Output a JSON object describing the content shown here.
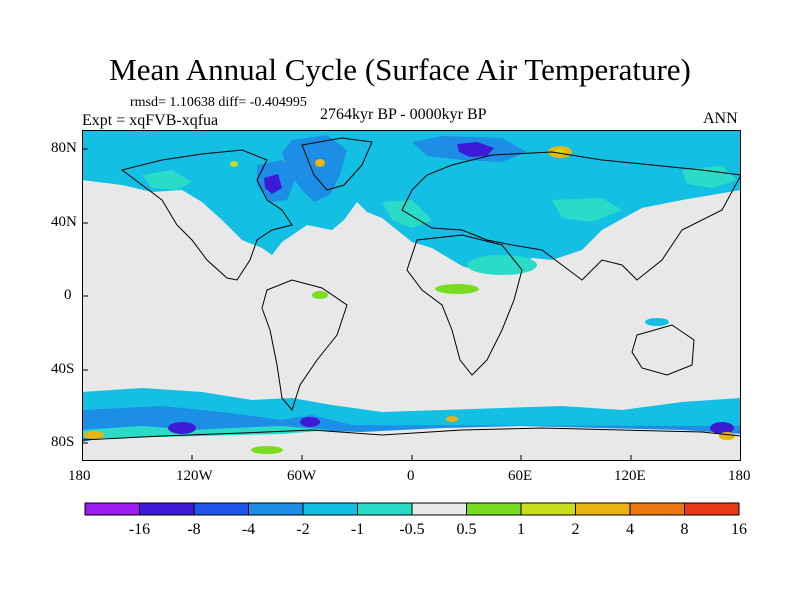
{
  "title": "Mean Annual Cycle (Surface Air Temperature)",
  "stats": "rmsd= 1.10638 diff= -0.404995",
  "experiment": "Expt = xqFVB-xqfua",
  "period": "2764kyr BP - 0000kyr BP",
  "season": "ANN",
  "axes": {
    "lat_labels": [
      "80N",
      "40N",
      "0",
      "40S",
      "80S"
    ],
    "lon_labels": [
      "180",
      "120W",
      "60W",
      "0",
      "60E",
      "120E",
      "180"
    ]
  },
  "legend": {
    "labels": [
      "-16",
      "-8",
      "-4",
      "-2",
      "-1",
      "-0.5",
      "0.5",
      "1",
      "2",
      "4",
      "8",
      "16"
    ],
    "colors": [
      "#9a1cf0",
      "#3c1ad6",
      "#1f55e8",
      "#1d8ee6",
      "#14bfe4",
      "#2adcc8",
      "#e8e8e8",
      "#78dc20",
      "#c8dc1c",
      "#e8b414",
      "#e8780f",
      "#e83a14"
    ]
  },
  "map": {
    "land_color": "#e8e8e8",
    "cool_color": "#14bfe4",
    "cooler_color": "#1d8ee6",
    "coldest_color": "#3c1ad6",
    "mild_color": "#2adcc8",
    "warm_color": "#78dc20",
    "hot_color": "#e8b414"
  }
}
